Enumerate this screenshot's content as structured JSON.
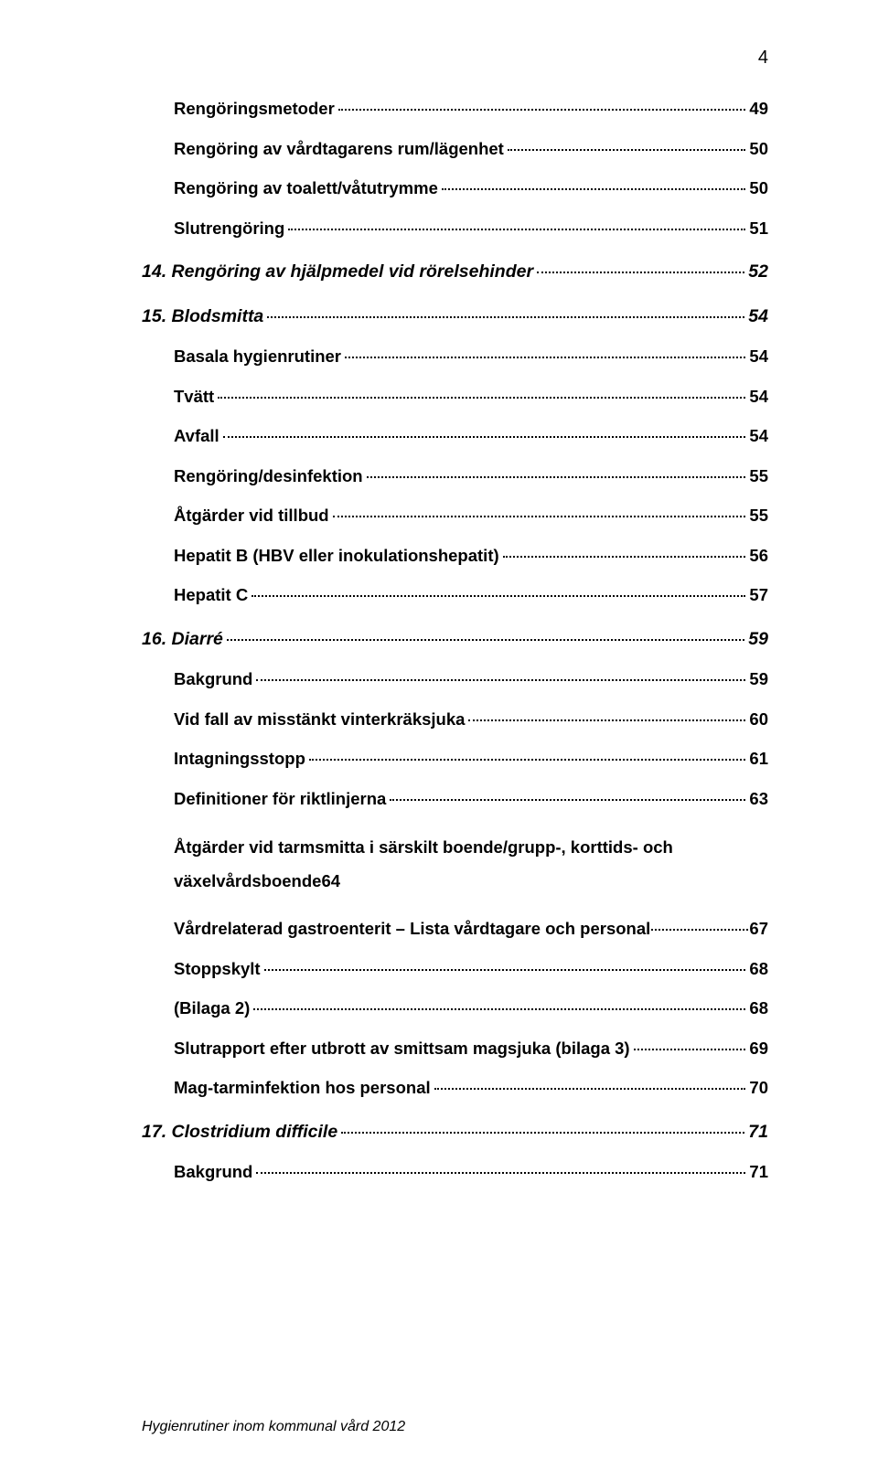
{
  "page_number": "4",
  "footer_text": "Hygienrutiner inom kommunal vård 2012",
  "toc": [
    {
      "level": 2,
      "label": "Rengöringsmetoder",
      "page": "49"
    },
    {
      "level": 2,
      "label": "Rengöring av vårdtagarens rum/lägenhet",
      "page": "50"
    },
    {
      "level": 2,
      "label": "Rengöring av toalett/våtutrymme",
      "page": "50"
    },
    {
      "level": 2,
      "label": "Slutrengöring",
      "page": "51"
    },
    {
      "level": 1,
      "label": "14. Rengöring av hjälpmedel vid   rörelsehinder",
      "page": "52"
    },
    {
      "level": 1,
      "label": "15. Blodsmitta",
      "page": "54"
    },
    {
      "level": 2,
      "label": "Basala hygienrutiner",
      "page": "54"
    },
    {
      "level": 2,
      "label": "Tvätt",
      "page": "54"
    },
    {
      "level": 2,
      "label": "Avfall",
      "page": "54"
    },
    {
      "level": 2,
      "label": "Rengöring/desinfektion",
      "page": "55"
    },
    {
      "level": 2,
      "label": "Åtgärder vid tillbud",
      "page": "55"
    },
    {
      "level": 2,
      "label": "Hepatit B (HBV eller inokulationshepatit)",
      "page": "56"
    },
    {
      "level": 2,
      "label": "Hepatit C",
      "page": "57"
    },
    {
      "level": 1,
      "label": "16. Diarré",
      "page": "59"
    },
    {
      "level": 2,
      "label": "Bakgrund",
      "page": "59"
    },
    {
      "level": 2,
      "label": "Vid fall av misstänkt vinterkräksjuka",
      "page": "60"
    },
    {
      "level": 2,
      "label": "Intagningsstopp",
      "page": "61"
    },
    {
      "level": 2,
      "label": "Definitioner för riktlinjerna",
      "page": "63"
    },
    {
      "level": 2,
      "multiline": true,
      "line1": "Åtgärder vid tarmsmitta i särskilt boende/grupp-, korttids- och",
      "line2": "växelvårdsboende",
      "page": "64"
    },
    {
      "level": 2,
      "label": "Vårdrelaterad gastroenterit – Lista vårdtagare och personal",
      "page": "67",
      "tight": true
    },
    {
      "level": 2,
      "label": "Stoppskylt",
      "page": "68"
    },
    {
      "level": 2,
      "label": "(Bilaga 2)",
      "page": "68"
    },
    {
      "level": 2,
      "label": "Slutrapport efter utbrott av smittsam magsjuka  (bilaga 3)",
      "page": "69"
    },
    {
      "level": 2,
      "label": "Mag-tarminfektion hos personal",
      "page": "70"
    },
    {
      "level": 1,
      "label": "17. Clostridium difficile",
      "page": "71"
    },
    {
      "level": 2,
      "label": "Bakgrund",
      "page": "71"
    }
  ]
}
